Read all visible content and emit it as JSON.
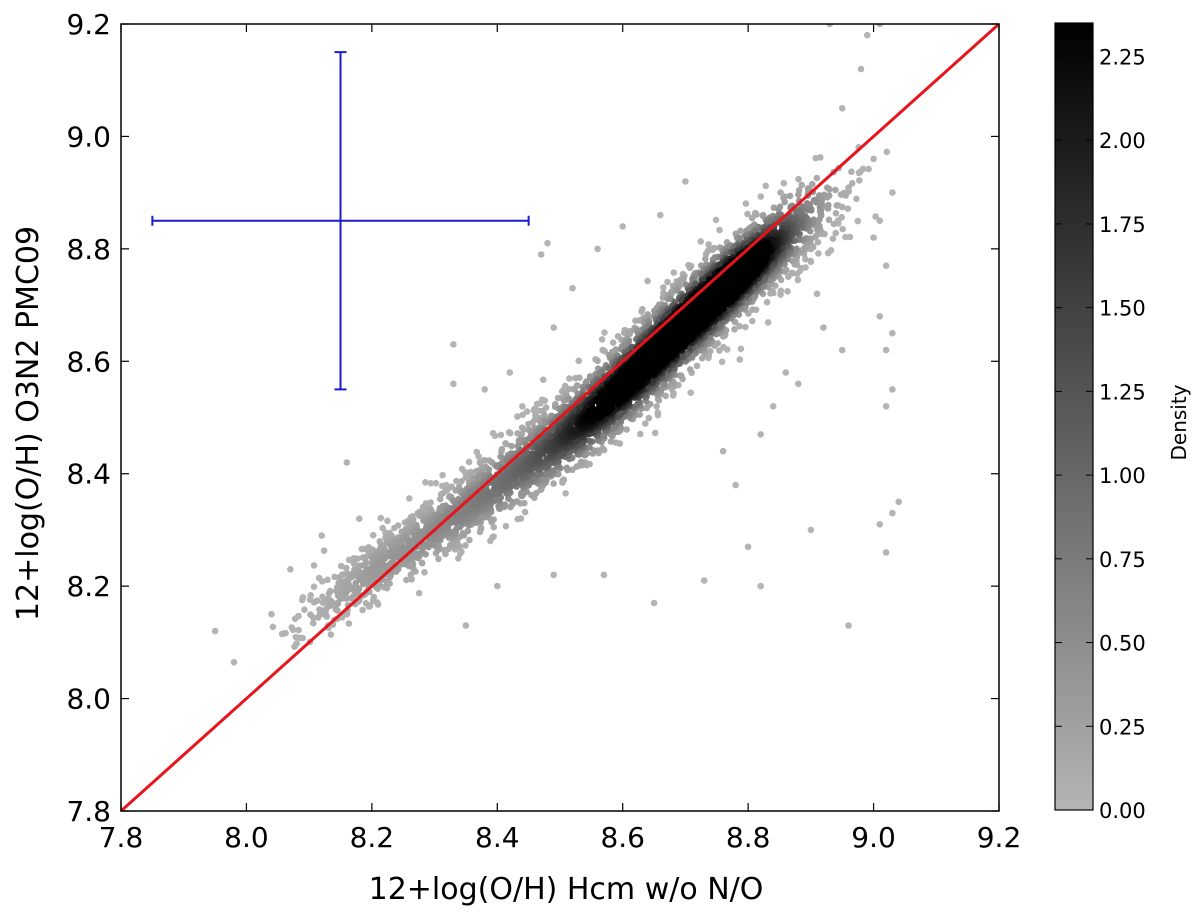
{
  "chart_data": {
    "type": "scatter",
    "xlabel": "12+log(O/H) Hcm w/o N/O",
    "ylabel": "12+log(O/H) O3N2 PMC09",
    "xlim": [
      7.8,
      9.2
    ],
    "ylim": [
      7.8,
      9.2
    ],
    "x_ticks": [
      "7.8",
      "8.0",
      "8.2",
      "8.4",
      "8.6",
      "8.8",
      "9.0",
      "9.2"
    ],
    "y_ticks": [
      "7.8",
      "8.0",
      "8.2",
      "8.4",
      "8.6",
      "8.8",
      "9.0",
      "9.2"
    ],
    "grid": false,
    "density_colors": {
      "low": "#b4b4b4",
      "high": "#000000"
    },
    "density_ridge": [
      {
        "x": 8.2,
        "y": 8.23,
        "sx": 0.06,
        "sy": 0.045,
        "density": 0.25
      },
      {
        "x": 8.3,
        "y": 8.3,
        "sx": 0.07,
        "sy": 0.05,
        "density": 0.35
      },
      {
        "x": 8.4,
        "y": 8.38,
        "sx": 0.07,
        "sy": 0.055,
        "density": 0.55
      },
      {
        "x": 8.5,
        "y": 8.46,
        "sx": 0.07,
        "sy": 0.06,
        "density": 0.85
      },
      {
        "x": 8.58,
        "y": 8.53,
        "sx": 0.065,
        "sy": 0.06,
        "density": 1.6
      },
      {
        "x": 8.65,
        "y": 8.61,
        "sx": 0.065,
        "sy": 0.06,
        "density": 1.9
      },
      {
        "x": 8.72,
        "y": 8.69,
        "sx": 0.06,
        "sy": 0.06,
        "density": 2.1
      },
      {
        "x": 8.78,
        "y": 8.75,
        "sx": 0.055,
        "sy": 0.055,
        "density": 2.3
      },
      {
        "x": 8.84,
        "y": 8.81,
        "sx": 0.06,
        "sy": 0.06,
        "density": 0.9
      }
    ],
    "outliers": [
      [
        7.95,
        8.12
      ],
      [
        8.04,
        8.15
      ],
      [
        8.07,
        8.23
      ],
      [
        8.09,
        8.18
      ],
      [
        8.12,
        8.29
      ],
      [
        8.14,
        8.14
      ],
      [
        8.18,
        8.32
      ],
      [
        8.16,
        8.42
      ],
      [
        8.33,
        8.56
      ],
      [
        8.33,
        8.63
      ],
      [
        8.47,
        8.79
      ],
      [
        8.48,
        8.81
      ],
      [
        8.49,
        8.66
      ],
      [
        8.52,
        8.73
      ],
      [
        8.35,
        8.13
      ],
      [
        8.4,
        8.2
      ],
      [
        8.49,
        8.22
      ],
      [
        8.57,
        8.22
      ],
      [
        8.65,
        8.17
      ],
      [
        8.73,
        8.21
      ],
      [
        8.78,
        8.38
      ],
      [
        8.8,
        8.27
      ],
      [
        8.82,
        8.2
      ],
      [
        8.9,
        8.3
      ],
      [
        8.96,
        8.13
      ],
      [
        9.01,
        8.31
      ],
      [
        9.02,
        8.26
      ],
      [
        9.03,
        8.33
      ],
      [
        9.04,
        8.35
      ],
      [
        9.02,
        8.52
      ],
      [
        9.03,
        8.55
      ],
      [
        9.02,
        8.62
      ],
      [
        9.03,
        8.65
      ],
      [
        9.01,
        8.68
      ],
      [
        9.02,
        8.77
      ],
      [
        9.0,
        8.82
      ],
      [
        9.01,
        8.85
      ],
      [
        9.03,
        8.9
      ],
      [
        9.0,
        8.96
      ],
      [
        8.95,
        9.05
      ],
      [
        8.98,
        9.12
      ],
      [
        8.99,
        9.18
      ],
      [
        9.01,
        9.2
      ],
      [
        8.93,
        9.2
      ],
      [
        8.91,
        8.72
      ],
      [
        8.92,
        8.66
      ],
      [
        8.95,
        8.62
      ],
      [
        8.88,
        8.56
      ],
      [
        8.86,
        8.58
      ],
      [
        8.84,
        8.52
      ],
      [
        8.82,
        8.47
      ],
      [
        8.76,
        8.44
      ],
      [
        8.7,
        8.92
      ],
      [
        8.66,
        8.86
      ],
      [
        8.6,
        8.84
      ],
      [
        8.56,
        8.8
      ],
      [
        8.44,
        8.52
      ],
      [
        8.42,
        8.58
      ],
      [
        8.38,
        8.55
      ]
    ],
    "reference_line": {
      "x": [
        7.8,
        9.2
      ],
      "y": [
        7.8,
        9.2
      ],
      "color": "#e8141c"
    },
    "error_bar": {
      "x": 8.15,
      "y": 8.85,
      "x_err": 0.3,
      "y_err": 0.3,
      "color": "#1b1bd0"
    },
    "colorbar": {
      "label": "Density",
      "ticks": [
        "0.00",
        "0.25",
        "0.50",
        "0.75",
        "1.00",
        "1.25",
        "1.50",
        "1.75",
        "2.00",
        "2.25"
      ],
      "range": [
        0,
        2.35
      ]
    }
  }
}
